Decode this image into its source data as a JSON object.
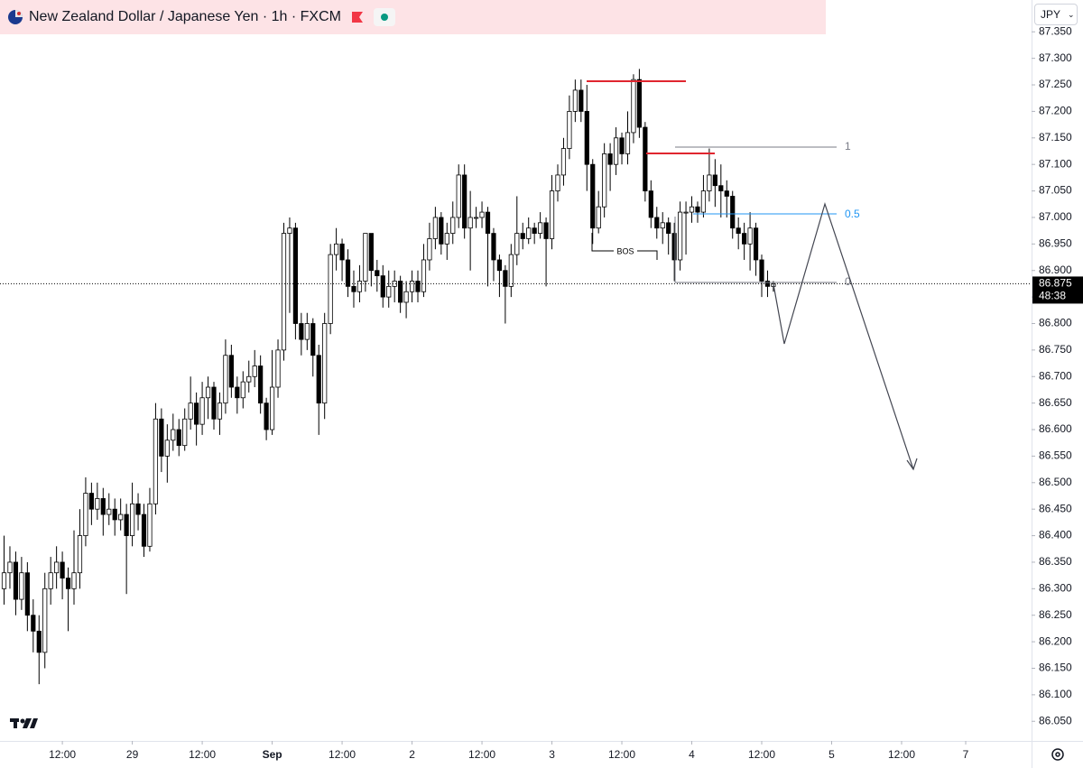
{
  "chart_data": {
    "type": "candlestick",
    "title": "New Zealand Dollar / Japanese Yen · 1h · FXCM",
    "currency": "JPY",
    "x": [
      2,
      3,
      4,
      5,
      6,
      7,
      8,
      9,
      10,
      11,
      12,
      13,
      14,
      15,
      16,
      17,
      18,
      19,
      20,
      21,
      22,
      23,
      24,
      25,
      26,
      27,
      28,
      29,
      30,
      31,
      32,
      33,
      34,
      35,
      36,
      37,
      38,
      39,
      40,
      41,
      42,
      43,
      44,
      45,
      46,
      47,
      48,
      49,
      50,
      51,
      52,
      53,
      54,
      55,
      56,
      57,
      58,
      59,
      60,
      61,
      62,
      63,
      64,
      65,
      66,
      67,
      68,
      69,
      70,
      71,
      72,
      73,
      74,
      75,
      76,
      77,
      78,
      79,
      80,
      81,
      82,
      83,
      84,
      85,
      86,
      87,
      88,
      89,
      90,
      91,
      92,
      93,
      94,
      95,
      96,
      97,
      98,
      99,
      100,
      101,
      102,
      103,
      104,
      105,
      106,
      107,
      108,
      109,
      110,
      111,
      112,
      113,
      114,
      115,
      116,
      117,
      118,
      119,
      120,
      121,
      122,
      123,
      124,
      125,
      126,
      127,
      128,
      129,
      130,
      131,
      132,
      133,
      134
    ],
    "open": [
      86.3,
      86.33,
      86.35,
      86.28,
      86.33,
      86.25,
      86.22,
      86.18,
      86.3,
      86.33,
      86.35,
      86.32,
      86.3,
      86.33,
      86.4,
      86.48,
      86.45,
      86.47,
      86.44,
      86.45,
      86.43,
      86.44,
      86.4,
      86.46,
      86.44,
      86.38,
      86.46,
      86.62,
      86.55,
      86.58,
      86.6,
      86.57,
      86.62,
      86.65,
      86.61,
      86.66,
      86.68,
      86.62,
      86.65,
      86.74,
      86.68,
      86.66,
      86.69,
      86.7,
      86.72,
      86.65,
      86.6,
      86.68,
      86.75,
      86.97,
      86.98,
      86.8,
      86.77,
      86.8,
      86.74,
      86.65,
      86.8,
      86.93,
      86.95,
      86.92,
      86.87,
      86.86,
      86.88,
      86.97,
      86.9,
      86.89,
      86.85,
      86.87,
      86.88,
      86.84,
      86.86,
      86.88,
      86.86,
      86.92,
      86.96,
      87.0,
      86.95,
      86.97,
      87.0,
      87.08,
      86.98,
      87.0,
      87.0,
      87.01,
      86.97,
      86.92,
      86.9,
      86.87,
      86.93,
      86.97,
      86.96,
      86.98,
      86.97,
      86.99,
      86.96,
      87.05,
      87.08,
      87.13,
      87.2,
      87.24,
      87.2,
      87.1,
      86.98,
      87.02,
      87.12,
      87.1,
      87.15,
      87.12,
      87.16,
      87.26,
      87.17,
      87.05,
      87.0,
      86.98,
      86.99,
      86.97,
      86.92,
      87.01,
      87.01,
      87.02,
      87.01,
      87.05,
      87.08,
      87.06,
      87.05,
      87.04,
      86.98,
      86.97,
      86.95,
      86.98,
      86.92,
      86.88,
      86.87
    ],
    "high": [
      86.4,
      86.38,
      86.37,
      86.36,
      86.35,
      86.28,
      86.25,
      86.33,
      86.36,
      86.38,
      86.37,
      86.34,
      86.41,
      86.45,
      86.51,
      86.5,
      86.5,
      86.49,
      86.48,
      86.47,
      86.47,
      86.46,
      86.5,
      86.48,
      86.46,
      86.49,
      86.65,
      86.64,
      86.61,
      86.63,
      86.62,
      86.64,
      86.7,
      86.67,
      86.69,
      86.7,
      86.69,
      86.67,
      86.77,
      86.76,
      86.7,
      86.71,
      86.73,
      86.75,
      86.74,
      86.66,
      86.75,
      86.77,
      86.99,
      87.0,
      86.99,
      86.82,
      86.82,
      86.81,
      86.76,
      86.82,
      86.95,
      86.98,
      86.96,
      86.94,
      86.9,
      86.91,
      86.97,
      86.97,
      86.92,
      86.91,
      86.9,
      86.9,
      86.89,
      86.88,
      86.9,
      86.9,
      86.95,
      86.99,
      87.02,
      87.01,
      86.99,
      87.03,
      87.1,
      87.1,
      87.05,
      87.02,
      87.03,
      87.02,
      86.98,
      86.93,
      86.91,
      86.95,
      87.04,
      86.99,
      87.0,
      86.99,
      87.01,
      87.0,
      87.08,
      87.1,
      87.15,
      87.23,
      87.26,
      87.26,
      87.25,
      87.11,
      87.05,
      87.14,
      87.14,
      87.17,
      87.16,
      87.2,
      87.27,
      87.28,
      87.18,
      87.07,
      87.02,
      87.01,
      87.0,
      86.99,
      87.03,
      87.03,
      87.04,
      87.03,
      87.08,
      87.13,
      87.11,
      87.1,
      87.07,
      87.05,
      87.0,
      86.99,
      87.01,
      86.99,
      86.93,
      86.9,
      86.88
    ],
    "low": [
      86.27,
      86.3,
      86.25,
      86.26,
      86.22,
      86.18,
      86.12,
      86.15,
      86.27,
      86.3,
      86.28,
      86.22,
      86.27,
      86.3,
      86.38,
      86.42,
      86.43,
      86.4,
      86.42,
      86.4,
      86.41,
      86.29,
      86.38,
      86.41,
      86.36,
      86.37,
      86.44,
      86.52,
      86.5,
      86.56,
      86.55,
      86.56,
      86.6,
      86.57,
      86.59,
      86.62,
      86.6,
      86.59,
      86.63,
      86.66,
      86.63,
      86.64,
      86.67,
      86.68,
      86.63,
      86.58,
      86.59,
      86.66,
      86.73,
      86.82,
      86.77,
      86.74,
      86.75,
      86.7,
      86.59,
      86.62,
      86.78,
      86.9,
      86.88,
      86.85,
      86.83,
      86.84,
      86.86,
      86.87,
      86.86,
      86.83,
      86.83,
      86.84,
      86.82,
      86.81,
      86.84,
      86.84,
      86.85,
      86.9,
      86.94,
      86.93,
      86.92,
      86.95,
      86.98,
      86.96,
      86.9,
      86.98,
      86.98,
      86.87,
      86.88,
      86.85,
      86.8,
      86.85,
      86.91,
      86.94,
      86.95,
      86.95,
      86.96,
      86.87,
      86.94,
      87.03,
      87.06,
      87.11,
      87.18,
      87.18,
      87.05,
      86.95,
      86.97,
      87.0,
      87.05,
      87.08,
      87.1,
      87.1,
      87.14,
      87.15,
      87.03,
      86.98,
      86.96,
      86.95,
      86.93,
      86.88,
      86.9,
      86.93,
      86.99,
      86.99,
      87.0,
      87.03,
      87.02,
      87.0,
      87.0,
      86.96,
      86.94,
      86.92,
      86.9,
      86.89,
      86.85,
      86.85,
      86.86
    ],
    "close": [
      86.33,
      86.35,
      86.28,
      86.33,
      86.25,
      86.22,
      86.18,
      86.3,
      86.33,
      86.35,
      86.32,
      86.3,
      86.33,
      86.4,
      86.48,
      86.45,
      86.47,
      86.44,
      86.45,
      86.43,
      86.44,
      86.4,
      86.46,
      86.44,
      86.38,
      86.46,
      86.62,
      86.55,
      86.58,
      86.6,
      86.57,
      86.62,
      86.65,
      86.61,
      86.66,
      86.68,
      86.62,
      86.65,
      86.74,
      86.68,
      86.66,
      86.69,
      86.7,
      86.72,
      86.65,
      86.6,
      86.68,
      86.75,
      86.97,
      86.98,
      86.8,
      86.77,
      86.8,
      86.74,
      86.65,
      86.8,
      86.93,
      86.95,
      86.92,
      86.87,
      86.86,
      86.88,
      86.97,
      86.9,
      86.89,
      86.85,
      86.87,
      86.88,
      86.84,
      86.86,
      86.88,
      86.86,
      86.92,
      86.96,
      87.0,
      86.95,
      86.97,
      87.0,
      87.08,
      86.98,
      87.0,
      87.0,
      87.01,
      86.97,
      86.92,
      86.9,
      86.87,
      86.93,
      86.97,
      86.96,
      86.98,
      86.97,
      86.99,
      86.96,
      87.05,
      87.08,
      87.13,
      87.2,
      87.24,
      87.2,
      87.1,
      86.98,
      87.02,
      87.12,
      87.1,
      87.15,
      87.12,
      87.16,
      87.26,
      87.17,
      87.05,
      87.0,
      86.98,
      86.99,
      86.97,
      86.92,
      87.01,
      87.01,
      87.02,
      87.01,
      87.05,
      87.08,
      87.06,
      87.05,
      87.04,
      86.98,
      86.97,
      86.95,
      86.98,
      86.92,
      86.88,
      86.87,
      86.875
    ],
    "up_color": "#ffffff",
    "down_color": "#000000",
    "last_price": 86.875,
    "countdown": "48:38",
    "xlim": [
      1.3,
      178.3
    ],
    "ylim": [
      86.013,
      87.41
    ],
    "xticks": [
      {
        "value": 12,
        "label": "12:00"
      },
      {
        "value": 24,
        "label": "29"
      },
      {
        "value": 36,
        "label": "12:00"
      },
      {
        "value": 48,
        "label": "Sep"
      },
      {
        "value": 60,
        "label": "12:00"
      },
      {
        "value": 72,
        "label": "2"
      },
      {
        "value": 84,
        "label": "12:00"
      },
      {
        "value": 96,
        "label": "3"
      },
      {
        "value": 108,
        "label": "12:00"
      },
      {
        "value": 120,
        "label": "4"
      },
      {
        "value": 132,
        "label": "12:00"
      },
      {
        "value": 144,
        "label": "5"
      },
      {
        "value": 156,
        "label": "12:00"
      },
      {
        "value": 167,
        "label": "7"
      }
    ],
    "yticks": [
      {
        "value": 86.05,
        "label": "86.050"
      },
      {
        "value": 86.1,
        "label": "86.100"
      },
      {
        "value": 86.15,
        "label": "86.150"
      },
      {
        "value": 86.2,
        "label": "86.200"
      },
      {
        "value": 86.25,
        "label": "86.250"
      },
      {
        "value": 86.3,
        "label": "86.300"
      },
      {
        "value": 86.35,
        "label": "86.350"
      },
      {
        "value": 86.4,
        "label": "86.400"
      },
      {
        "value": 86.45,
        "label": "86.450"
      },
      {
        "value": 86.5,
        "label": "86.500"
      },
      {
        "value": 86.55,
        "label": "86.550"
      },
      {
        "value": 86.6,
        "label": "86.600"
      },
      {
        "value": 86.65,
        "label": "86.650"
      },
      {
        "value": 86.7,
        "label": "86.700"
      },
      {
        "value": 86.75,
        "label": "86.750"
      },
      {
        "value": 86.8,
        "label": "86.800"
      },
      {
        "value": 86.85,
        "label": "86.850"
      },
      {
        "value": 86.9,
        "label": "86.900"
      },
      {
        "value": 86.95,
        "label": "86.950"
      },
      {
        "value": 87.0,
        "label": "87.000"
      },
      {
        "value": 87.05,
        "label": "87.050"
      },
      {
        "value": 87.1,
        "label": "87.100"
      },
      {
        "value": 87.15,
        "label": "87.150"
      },
      {
        "value": 87.2,
        "label": "87.200"
      },
      {
        "value": 87.25,
        "label": "87.250"
      },
      {
        "value": 87.3,
        "label": "87.300"
      },
      {
        "value": 87.35,
        "label": "87.350"
      }
    ],
    "annotations": {
      "bos": "BOS",
      "fib": [
        "1",
        "0.5",
        "0"
      ]
    }
  }
}
